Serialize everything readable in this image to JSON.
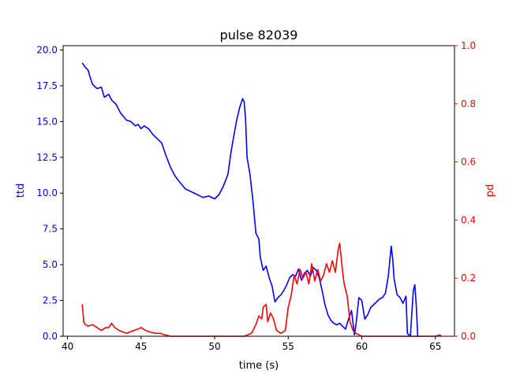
{
  "chart_data": {
    "type": "line",
    "title": "pulse 82039",
    "xlabel": "time (s)",
    "ylabel_left": "ttd",
    "ylabel_right": "pd",
    "xlim": [
      39.7,
      66.3
    ],
    "ylim_left": [
      0,
      20.3
    ],
    "ylim_right": [
      0,
      1.0
    ],
    "x_ticks": [
      40,
      45,
      50,
      55,
      60,
      65
    ],
    "x_tick_labels": [
      "40",
      "45",
      "50",
      "55",
      "60",
      "65"
    ],
    "y_ticks_left": [
      0,
      2.5,
      5,
      7.5,
      10,
      12.5,
      15,
      17.5,
      20
    ],
    "y_tick_labels_left": [
      "0.0",
      "2.5",
      "5.0",
      "7.5",
      "10.0",
      "12.5",
      "15.0",
      "17.5",
      "20.0"
    ],
    "y_ticks_right": [
      0,
      0.2,
      0.4,
      0.6,
      0.8,
      1.0
    ],
    "y_tick_labels_right": [
      "0.0",
      "0.2",
      "0.4",
      "0.6",
      "0.8",
      "1.0"
    ],
    "grid": false,
    "colors": {
      "ttd": "#0000ff",
      "pd": "#ff0000",
      "axes": "#000000"
    },
    "series": [
      {
        "axis": "left",
        "x": [
          41.0,
          41.2,
          41.4,
          41.5,
          41.7,
          42.0,
          42.3,
          42.5,
          42.8,
          43.0,
          43.3,
          43.6,
          44.0,
          44.3,
          44.6,
          44.8,
          45.0,
          45.2,
          45.5,
          45.8,
          46.1,
          46.4,
          46.7,
          47.0,
          47.3,
          47.6,
          48.0,
          48.4,
          48.8,
          49.2,
          49.6,
          50.0,
          50.3,
          50.6,
          50.9,
          51.1,
          51.3,
          51.5,
          51.7,
          51.9,
          52.0,
          52.1,
          52.2,
          52.4,
          52.6,
          52.8,
          53.0,
          53.1,
          53.3,
          53.5,
          53.7,
          53.9,
          54.1,
          54.3,
          54.5,
          54.7,
          54.9,
          55.1,
          55.3,
          55.5,
          55.7,
          55.9,
          56.1,
          56.3,
          56.5,
          56.7,
          56.9,
          57.1,
          57.3,
          57.5,
          57.7,
          57.9,
          58.1,
          58.3,
          58.5,
          58.7,
          58.9,
          59.1,
          59.3,
          59.5,
          59.6,
          59.8,
          60.0,
          60.2,
          60.4,
          60.6,
          60.8,
          61.0,
          61.2,
          61.4,
          61.6,
          61.8,
          62.0,
          62.1,
          62.2,
          62.4,
          62.6,
          62.8,
          63.0,
          63.1,
          63.3,
          63.5,
          63.6,
          63.7,
          63.8,
          63.9
        ],
        "values": [
          19.1,
          18.8,
          18.6,
          18.2,
          17.6,
          17.3,
          17.4,
          16.7,
          16.9,
          16.5,
          16.2,
          15.6,
          15.1,
          15.0,
          14.7,
          14.8,
          14.5,
          14.7,
          14.5,
          14.1,
          13.8,
          13.5,
          12.6,
          11.8,
          11.2,
          10.8,
          10.3,
          10.1,
          9.9,
          9.7,
          9.8,
          9.6,
          9.9,
          10.5,
          11.3,
          12.8,
          14.0,
          15.1,
          16.0,
          16.6,
          16.4,
          15.2,
          12.5,
          11.3,
          9.5,
          7.2,
          6.8,
          5.5,
          4.6,
          4.9,
          4.1,
          3.5,
          2.4,
          2.7,
          2.9,
          3.2,
          3.6,
          4.1,
          4.3,
          4.2,
          4.7,
          3.9,
          4.4,
          4.6,
          4.2,
          4.8,
          4.6,
          4.1,
          3.2,
          2.2,
          1.5,
          1.1,
          0.9,
          0.8,
          0.9,
          0.7,
          0.5,
          1.2,
          1.8,
          0.1,
          0.8,
          2.7,
          2.5,
          1.2,
          1.5,
          2.0,
          2.2,
          2.4,
          2.6,
          2.7,
          3.0,
          4.2,
          6.3,
          5.4,
          4.0,
          2.9,
          2.7,
          2.3,
          2.8,
          0.2,
          0.0,
          3.2,
          3.6,
          2.2,
          0.0,
          0.0
        ]
      },
      {
        "axis": "right",
        "x": [
          41.0,
          41.05,
          41.1,
          41.2,
          41.4,
          41.7,
          42.0,
          42.3,
          42.6,
          42.8,
          43.0,
          43.2,
          43.5,
          44.0,
          44.5,
          44.8,
          45.0,
          45.3,
          45.6,
          46.0,
          46.3,
          46.6,
          47.0,
          48.0,
          49.0,
          50.0,
          51.0,
          52.0,
          52.5,
          52.8,
          53.0,
          53.2,
          53.3,
          53.5,
          53.6,
          53.8,
          54.0,
          54.2,
          54.5,
          54.8,
          55.0,
          55.2,
          55.4,
          55.6,
          55.8,
          56.0,
          56.2,
          56.4,
          56.6,
          56.8,
          57.0,
          57.2,
          57.4,
          57.6,
          57.8,
          58.0,
          58.2,
          58.4,
          58.5,
          58.6,
          58.7,
          58.8,
          58.9,
          59.0,
          59.2,
          59.4,
          59.6,
          60.0,
          61.0,
          62.0,
          63.0,
          64.0,
          64.5,
          65.0,
          65.3,
          65.4
        ],
        "values": [
          0.11,
          0.08,
          0.05,
          0.04,
          0.035,
          0.04,
          0.03,
          0.02,
          0.03,
          0.03,
          0.045,
          0.03,
          0.02,
          0.01,
          0.02,
          0.025,
          0.03,
          0.02,
          0.015,
          0.01,
          0.01,
          0.005,
          0.0,
          0.0,
          0.0,
          0.0,
          0.0,
          0.0,
          0.01,
          0.04,
          0.07,
          0.06,
          0.1,
          0.11,
          0.05,
          0.08,
          0.06,
          0.02,
          0.01,
          0.02,
          0.1,
          0.14,
          0.21,
          0.18,
          0.23,
          0.2,
          0.22,
          0.18,
          0.25,
          0.19,
          0.23,
          0.19,
          0.21,
          0.25,
          0.22,
          0.26,
          0.22,
          0.3,
          0.32,
          0.27,
          0.22,
          0.18,
          0.16,
          0.14,
          0.05,
          0.02,
          0.01,
          0.0,
          0.0,
          0.0,
          0.0,
          0.0,
          0.0,
          0.0,
          0.005,
          0.0
        ]
      }
    ]
  }
}
